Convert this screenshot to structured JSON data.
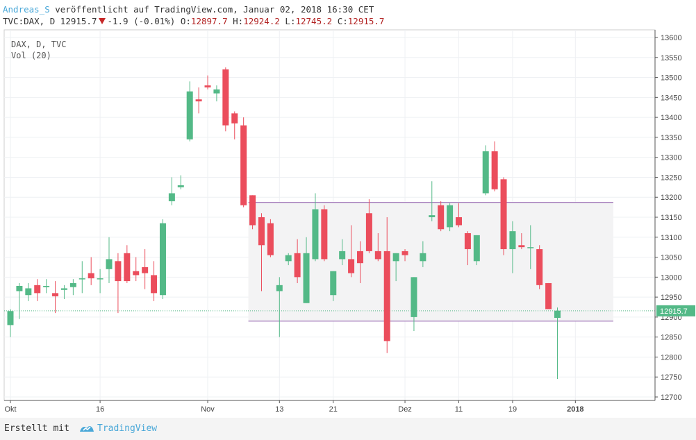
{
  "header": {
    "author": "Andreas_S",
    "published": " veröffentlicht auf TradingView.com, Januar 02, 2018 16:30 CET",
    "symbol": "TVC:DAX, D",
    "last": "12915.7",
    "change": "-1.9 (-0.01%)",
    "o_label": "O:",
    "o_val": "12897.7",
    "h_label": "H:",
    "h_val": "12924.2",
    "l_label": "L:",
    "l_val": "12745.2",
    "c_label": "C:",
    "c_val": "12915.7"
  },
  "legend": {
    "line1": "DAX, D, TVC",
    "line2": "Vol (20)"
  },
  "footer": {
    "made_with": "Erstellt mit",
    "brand": "TradingView"
  },
  "colors": {
    "up": "#53b987",
    "down": "#eb4d5c",
    "range_line": "#9c6fb4",
    "grid": "#eef0f3",
    "price_line": "#53b987"
  },
  "chart_data": {
    "type": "candlestick",
    "title": "DAX, D, TVC",
    "y_ticks": [
      12700,
      12750,
      12800,
      12850,
      12900,
      12950,
      13000,
      13050,
      13100,
      13150,
      13200,
      13250,
      13300,
      13350,
      13400,
      13450,
      13500,
      13550,
      13600
    ],
    "ylim": [
      12680,
      13630
    ],
    "x_ticks": [
      {
        "label": "Okt",
        "i": 0
      },
      {
        "label": "16",
        "i": 10
      },
      {
        "label": "Nov",
        "i": 22
      },
      {
        "label": "13",
        "i": 30
      },
      {
        "label": "21",
        "i": 36
      },
      {
        "label": "Dez",
        "i": 44
      },
      {
        "label": "11",
        "i": 50
      },
      {
        "label": "19",
        "i": 56
      },
      {
        "label": "2018",
        "i": 63
      }
    ],
    "current_price_label": "12915.7",
    "current_price": 12915.7,
    "range_box": {
      "top": 13187,
      "bottom": 12890,
      "from_i": 27,
      "to_i": 67
    },
    "candles": [
      {
        "o": 12880,
        "h": 12920,
        "l": 12850,
        "c": 12915
      },
      {
        "o": 12965,
        "h": 12985,
        "l": 12895,
        "c": 12978
      },
      {
        "o": 12955,
        "h": 12985,
        "l": 12940,
        "c": 12972
      },
      {
        "o": 12980,
        "h": 12995,
        "l": 12940,
        "c": 12960
      },
      {
        "o": 12975,
        "h": 12995,
        "l": 12960,
        "c": 12978
      },
      {
        "o": 12960,
        "h": 12990,
        "l": 12910,
        "c": 12952
      },
      {
        "o": 12968,
        "h": 12980,
        "l": 12945,
        "c": 12972
      },
      {
        "o": 12975,
        "h": 12995,
        "l": 12955,
        "c": 12985
      },
      {
        "o": 12995,
        "h": 13040,
        "l": 12960,
        "c": 12997
      },
      {
        "o": 13010,
        "h": 13050,
        "l": 12980,
        "c": 12997
      },
      {
        "o": 12995,
        "h": 13020,
        "l": 12960,
        "c": 12997
      },
      {
        "o": 13020,
        "h": 13100,
        "l": 12985,
        "c": 13045
      },
      {
        "o": 13040,
        "h": 13060,
        "l": 12910,
        "c": 12990
      },
      {
        "o": 13060,
        "h": 13080,
        "l": 12985,
        "c": 12990
      },
      {
        "o": 13015,
        "h": 13050,
        "l": 12990,
        "c": 13005
      },
      {
        "o": 13025,
        "h": 13070,
        "l": 12970,
        "c": 13010
      },
      {
        "o": 13005,
        "h": 13040,
        "l": 12940,
        "c": 12960
      },
      {
        "o": 12955,
        "h": 13145,
        "l": 12945,
        "c": 13135
      },
      {
        "o": 13190,
        "h": 13250,
        "l": 13180,
        "c": 13210
      },
      {
        "o": 13225,
        "h": 13255,
        "l": 13220,
        "c": 13230
      },
      {
        "o": 13345,
        "h": 13490,
        "l": 13340,
        "c": 13465
      },
      {
        "o": 13445,
        "h": 13475,
        "l": 13410,
        "c": 13440
      },
      {
        "o": 13480,
        "h": 13505,
        "l": 13470,
        "c": 13475
      },
      {
        "o": 13460,
        "h": 13480,
        "l": 13440,
        "c": 13470
      },
      {
        "o": 13520,
        "h": 13525,
        "l": 13365,
        "c": 13380
      },
      {
        "o": 13410,
        "h": 13415,
        "l": 13345,
        "c": 13385
      },
      {
        "o": 13380,
        "h": 13400,
        "l": 13175,
        "c": 13180
      },
      {
        "o": 13205,
        "h": 13205,
        "l": 13120,
        "c": 13130
      },
      {
        "o": 13150,
        "h": 13160,
        "l": 12965,
        "c": 13080
      },
      {
        "o": 13135,
        "h": 13145,
        "l": 13050,
        "c": 13055
      },
      {
        "o": 12965,
        "h": 13000,
        "l": 12850,
        "c": 12980
      },
      {
        "o": 13040,
        "h": 13060,
        "l": 13030,
        "c": 13055
      },
      {
        "o": 13060,
        "h": 13095,
        "l": 12985,
        "c": 13000
      },
      {
        "o": 12935,
        "h": 13100,
        "l": 12935,
        "c": 13060
      },
      {
        "o": 13045,
        "h": 13210,
        "l": 13040,
        "c": 13170
      },
      {
        "o": 13170,
        "h": 13180,
        "l": 13040,
        "c": 13045
      },
      {
        "o": 12955,
        "h": 13015,
        "l": 12940,
        "c": 13015
      },
      {
        "o": 13045,
        "h": 13095,
        "l": 13030,
        "c": 13065
      },
      {
        "o": 13045,
        "h": 13130,
        "l": 13000,
        "c": 13010
      },
      {
        "o": 13065,
        "h": 13090,
        "l": 12985,
        "c": 13035
      },
      {
        "o": 13160,
        "h": 13195,
        "l": 13060,
        "c": 13065
      },
      {
        "o": 13065,
        "h": 13110,
        "l": 13040,
        "c": 13045
      },
      {
        "o": 13065,
        "h": 13150,
        "l": 12810,
        "c": 12840
      },
      {
        "o": 13040,
        "h": 13060,
        "l": 12990,
        "c": 13060
      },
      {
        "o": 13065,
        "h": 13070,
        "l": 13040,
        "c": 13055
      },
      {
        "o": 12900,
        "h": 13000,
        "l": 12865,
        "c": 13000
      },
      {
        "o": 13040,
        "h": 13090,
        "l": 13025,
        "c": 13060
      },
      {
        "o": 13150,
        "h": 13240,
        "l": 13140,
        "c": 13155
      },
      {
        "o": 13180,
        "h": 13190,
        "l": 13115,
        "c": 13120
      },
      {
        "o": 13125,
        "h": 13185,
        "l": 13115,
        "c": 13180
      },
      {
        "o": 13150,
        "h": 13185,
        "l": 13125,
        "c": 13130
      },
      {
        "o": 13110,
        "h": 13115,
        "l": 13030,
        "c": 13070
      },
      {
        "o": 13040,
        "h": 13105,
        "l": 13030,
        "c": 13105
      },
      {
        "o": 13210,
        "h": 13330,
        "l": 13205,
        "c": 13315
      },
      {
        "o": 13315,
        "h": 13340,
        "l": 13215,
        "c": 13220
      },
      {
        "o": 13245,
        "h": 13250,
        "l": 13055,
        "c": 13070
      },
      {
        "o": 13070,
        "h": 13140,
        "l": 13010,
        "c": 13115
      },
      {
        "o": 13080,
        "h": 13110,
        "l": 13070,
        "c": 13075
      },
      {
        "o": 13075,
        "h": 13130,
        "l": 13020,
        "c": 13075
      },
      {
        "o": 13070,
        "h": 13080,
        "l": 12970,
        "c": 12980
      },
      {
        "o": 12985,
        "h": 12985,
        "l": 12920,
        "c": 12920
      },
      {
        "o": 12898,
        "h": 12924,
        "l": 12745,
        "c": 12916
      }
    ]
  }
}
